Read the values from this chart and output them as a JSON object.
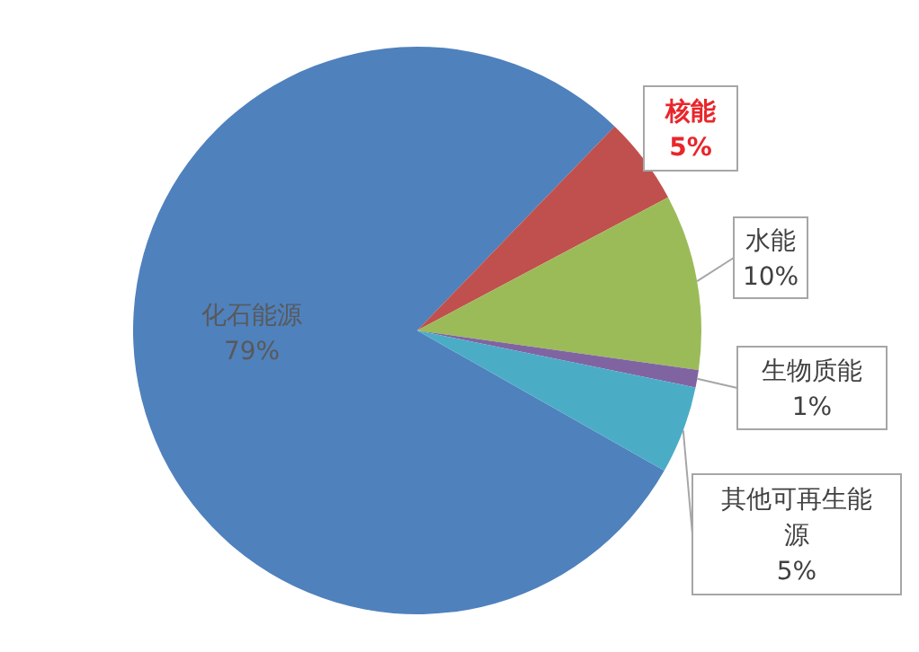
{
  "chart_data": {
    "type": "pie",
    "categories": [
      "化石能源",
      "核能",
      "水能",
      "生物质能",
      "其他可再生能源"
    ],
    "values": [
      79,
      5,
      10,
      1,
      5
    ],
    "colors": [
      "#4f81bd",
      "#c0504d",
      "#9bbb59",
      "#8064a2",
      "#4bacc6"
    ],
    "value_labels": [
      "79%",
      "5%",
      "10%",
      "1%",
      "5%"
    ]
  }
}
